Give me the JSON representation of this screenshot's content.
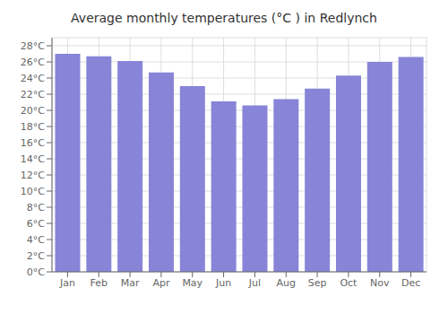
{
  "chart_data": {
    "type": "bar",
    "title": "Average monthly temperatures (°C ) in Redlynch",
    "categories": [
      "Jan",
      "Feb",
      "Mar",
      "Apr",
      "May",
      "Jun",
      "Jul",
      "Aug",
      "Sep",
      "Oct",
      "Nov",
      "Dec"
    ],
    "values": [
      27.0,
      26.7,
      26.1,
      24.7,
      23.0,
      21.1,
      20.6,
      21.4,
      22.7,
      24.3,
      26.0,
      26.6
    ],
    "ylim": [
      0,
      29
    ],
    "yticks": [
      {
        "value": 0,
        "label": "0°C"
      },
      {
        "value": 2,
        "label": "2°C"
      },
      {
        "value": 4,
        "label": "4°C"
      },
      {
        "value": 6,
        "label": "6°C"
      },
      {
        "value": 8,
        "label": "8°C"
      },
      {
        "value": 10,
        "label": "10°C"
      },
      {
        "value": 12,
        "label": "12°C"
      },
      {
        "value": 14,
        "label": "14°C"
      },
      {
        "value": 16,
        "label": "16°C"
      },
      {
        "value": 18,
        "label": "18°C"
      },
      {
        "value": 20,
        "label": "20°C"
      },
      {
        "value": 22,
        "label": "22°C"
      },
      {
        "value": 24,
        "label": "24°C"
      },
      {
        "value": 26,
        "label": "26°C"
      },
      {
        "value": 28,
        "label": "28°C"
      }
    ],
    "grid": true
  }
}
